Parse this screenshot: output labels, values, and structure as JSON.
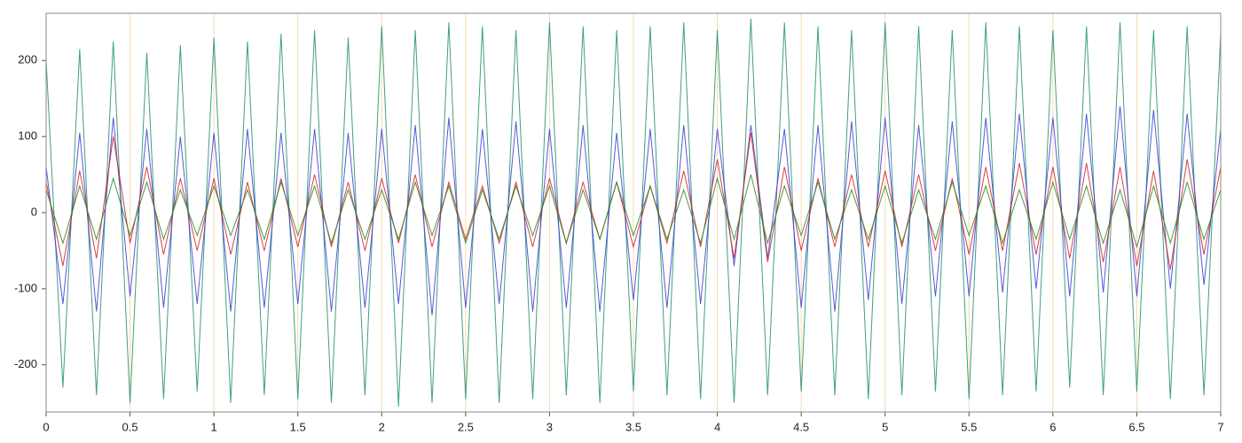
{
  "chart_data": {
    "type": "line",
    "x": [
      0,
      0.1,
      0.2,
      0.3,
      0.4,
      0.5,
      0.6,
      0.7,
      0.8,
      0.9,
      1,
      1.1,
      1.2,
      1.3,
      1.4,
      1.5,
      1.6,
      1.7,
      1.8,
      1.9,
      2,
      2.1,
      2.2,
      2.3,
      2.4,
      2.5,
      2.6,
      2.7,
      2.8,
      2.9,
      3,
      3.1,
      3.2,
      3.3,
      3.4,
      3.5,
      3.6,
      3.7,
      3.8,
      3.9,
      4,
      4.1,
      4.2,
      4.3,
      4.4,
      4.5,
      4.6,
      4.7,
      4.8,
      4.9,
      5,
      5.1,
      5.2,
      5.3,
      5.4,
      5.5,
      5.6,
      5.7,
      5.8,
      5.9,
      6,
      6.1,
      6.2,
      6.3,
      6.4,
      6.5,
      6.6,
      6.7,
      6.8,
      6.9,
      7
    ],
    "series": [
      {
        "color": "#1f8f6a",
        "values": [
          200,
          -230,
          215,
          -240,
          225,
          -250,
          210,
          -245,
          220,
          -235,
          230,
          -250,
          225,
          -240,
          235,
          -245,
          240,
          -250,
          230,
          -240,
          245,
          -255,
          240,
          -250,
          250,
          -245,
          245,
          -250,
          240,
          -245,
          250,
          -240,
          245,
          -250,
          240,
          -235,
          245,
          -240,
          250,
          -245,
          240,
          -250,
          255,
          -240,
          250,
          -235,
          245,
          -240,
          240,
          -245,
          250,
          -240,
          245,
          -235,
          240,
          -245,
          250,
          -240,
          245,
          -235,
          240,
          -230,
          245,
          -240,
          250,
          -235,
          240,
          -245,
          245,
          -240,
          235
        ]
      },
      {
        "color": "#3a3ad8",
        "values": [
          60,
          -120,
          105,
          -130,
          125,
          -110,
          110,
          -125,
          100,
          -120,
          105,
          -130,
          110,
          -125,
          105,
          -120,
          110,
          -130,
          105,
          -125,
          110,
          -120,
          115,
          -135,
          125,
          -125,
          110,
          -120,
          120,
          -130,
          110,
          -125,
          115,
          -130,
          105,
          -115,
          110,
          -125,
          115,
          -120,
          110,
          -70,
          115,
          -60,
          110,
          -125,
          115,
          -130,
          120,
          -115,
          125,
          -120,
          115,
          -110,
          120,
          -110,
          125,
          -105,
          130,
          -100,
          125,
          -110,
          130,
          -105,
          140,
          -110,
          135,
          -100,
          130,
          -95,
          110
        ]
      },
      {
        "color": "#cc2222",
        "values": [
          40,
          -70,
          55,
          -60,
          100,
          -40,
          60,
          -55,
          45,
          -50,
          45,
          -55,
          40,
          -50,
          45,
          -45,
          50,
          -45,
          40,
          -50,
          45,
          -40,
          50,
          -45,
          40,
          -35,
          35,
          -40,
          40,
          -45,
          45,
          -40,
          40,
          -35,
          40,
          -45,
          35,
          -40,
          55,
          -45,
          70,
          -60,
          105,
          -65,
          60,
          -50,
          45,
          -45,
          50,
          -45,
          55,
          -45,
          50,
          -50,
          45,
          -55,
          60,
          -50,
          65,
          -55,
          60,
          -60,
          65,
          -65,
          60,
          -70,
          55,
          -75,
          70,
          -55,
          60
        ]
      },
      {
        "color": "#228b22",
        "values": [
          30,
          -40,
          35,
          -35,
          45,
          -30,
          40,
          -35,
          30,
          -30,
          35,
          -30,
          30,
          -35,
          40,
          -30,
          35,
          -40,
          30,
          -35,
          30,
          -35,
          40,
          -30,
          35,
          -40,
          30,
          -35,
          35,
          -30,
          35,
          -40,
          30,
          -35,
          40,
          -30,
          35,
          -35,
          30,
          -40,
          45,
          -35,
          50,
          -40,
          35,
          -30,
          40,
          -35,
          30,
          -35,
          35,
          -40,
          30,
          -35,
          40,
          -30,
          35,
          -40,
          30,
          -35,
          40,
          -35,
          35,
          -40,
          30,
          -45,
          35,
          -40,
          40,
          -35,
          30
        ]
      }
    ],
    "xlim": [
      0,
      7
    ],
    "xticks": [
      0,
      0.5,
      1,
      1.5,
      2,
      2.5,
      3,
      3.5,
      4,
      4.5,
      5,
      5.5,
      6,
      6.5,
      7
    ],
    "ylim": [
      -262,
      262
    ],
    "yticks": [
      -200,
      -100,
      0,
      100,
      200
    ],
    "grid": true,
    "grid_color": "#f5d9b0"
  }
}
